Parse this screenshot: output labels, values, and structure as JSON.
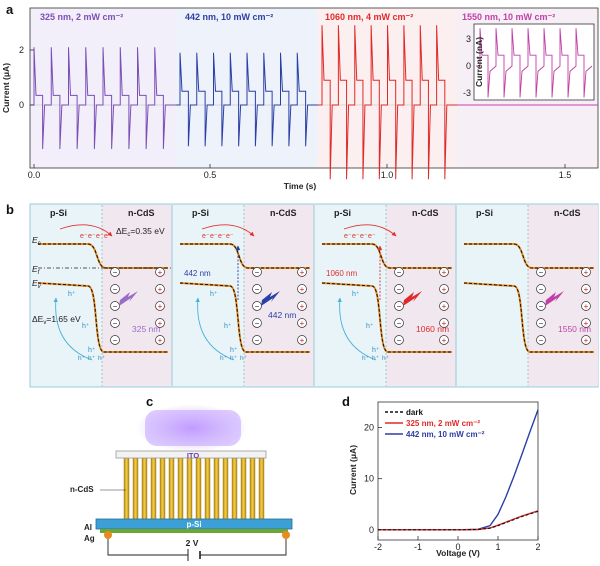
{
  "panel_labels": {
    "a": "a",
    "b": "b",
    "c": "c",
    "d": "d"
  },
  "panel_a": {
    "ylabel": "Current (μA)",
    "xlabel": "Time (s)",
    "yticks": [
      "2",
      "0"
    ],
    "xticks": [
      "0.0",
      "0.5",
      "1.0",
      "1.5"
    ],
    "segments": [
      {
        "label": "325 nm, 2 mW cm⁻²",
        "color": "#7b4fb6",
        "bg": "#f3effa"
      },
      {
        "label": "442 nm, 10 mW cm⁻²",
        "color": "#2b3fa6",
        "bg": "#eef2fa"
      },
      {
        "label": "1060 nm, 4 mW cm⁻²",
        "color": "#e02a2a",
        "bg": "#fbefef"
      },
      {
        "label": "1550 nm, 10 mW cm⁻²",
        "color": "#c040a8",
        "bg": "#f7eff6"
      }
    ],
    "inset": {
      "ylabel": "Current (nA)",
      "yticks": [
        "3",
        "0",
        "-3"
      ],
      "color": "#c040a8"
    }
  },
  "panel_b": {
    "panels": [
      {
        "left": "p-Si",
        "right": "n-CdS",
        "wavelength": "325 nm",
        "wcolor": "#9a6cc8"
      },
      {
        "left": "p-Si",
        "right": "n-CdS",
        "wavelength": "442 nm",
        "wcolor": "#2b3fa6"
      },
      {
        "left": "p-Si",
        "right": "n-CdS",
        "wavelength": "1060 nm",
        "wcolor": "#e02a2a"
      },
      {
        "left": "p-Si",
        "right": "n-CdS",
        "wavelength": "1550 nm",
        "wcolor": "#c040a8"
      }
    ],
    "Ec": "E",
    "Ec_sub": "c",
    "Ef": "E",
    "Ef_sub": "f",
    "Ev": "E",
    "Ev_sub": "v",
    "delta_ec": "ΔE",
    "delta_ec_sub": "c",
    "delta_ec_val": "=0.35 eV",
    "delta_ev": "ΔE",
    "delta_ev_sub": "v",
    "delta_ev_val": "=1.65 eV",
    "hole": "h⁺",
    "electron": "e⁻",
    "arrow_label_442": "442 nm",
    "arrow_label_1060": "1060 nm"
  },
  "panel_c": {
    "ito": "ITO",
    "ncds": "n-CdS",
    "psi": "p-Si",
    "al": "Al",
    "ag": "Ag",
    "voltage": "2 V"
  },
  "chart_data": {
    "type": "line",
    "xlabel": "Voltage (V)",
    "ylabel": "Current (μA)",
    "xlim": [
      -2,
      2
    ],
    "ylim": [
      -2,
      25
    ],
    "xticks": [
      -2,
      -1,
      0,
      1,
      2
    ],
    "yticks": [
      0,
      10,
      20
    ],
    "legend_position": "top-left",
    "series": [
      {
        "name": "dark",
        "color": "#111111",
        "dash": true,
        "x": [
          -2,
          -1,
          0,
          0.5,
          0.8,
          1.0,
          1.2,
          1.4,
          1.6,
          1.8,
          2.0
        ],
        "y": [
          0,
          0,
          0,
          0.05,
          0.3,
          0.8,
          1.4,
          2.0,
          2.6,
          3.1,
          3.6
        ]
      },
      {
        "name": "325 nm, 2 mW cm⁻²",
        "color": "#e02a2a",
        "dash": false,
        "x": [
          -2,
          -1,
          0,
          0.5,
          0.8,
          1.0,
          1.2,
          1.4,
          1.6,
          1.8,
          2.0
        ],
        "y": [
          0,
          0,
          0,
          0.05,
          0.35,
          0.9,
          1.5,
          2.1,
          2.7,
          3.2,
          3.7
        ]
      },
      {
        "name": "442 nm, 10 mW cm⁻²",
        "color": "#2b3fa6",
        "dash": false,
        "x": [
          -2,
          -1,
          0,
          0.5,
          0.8,
          1.0,
          1.2,
          1.4,
          1.6,
          1.8,
          2.0
        ],
        "y": [
          0,
          0,
          0,
          0.1,
          0.8,
          3.0,
          6.5,
          10.5,
          14.8,
          19.2,
          23.5
        ]
      }
    ]
  }
}
